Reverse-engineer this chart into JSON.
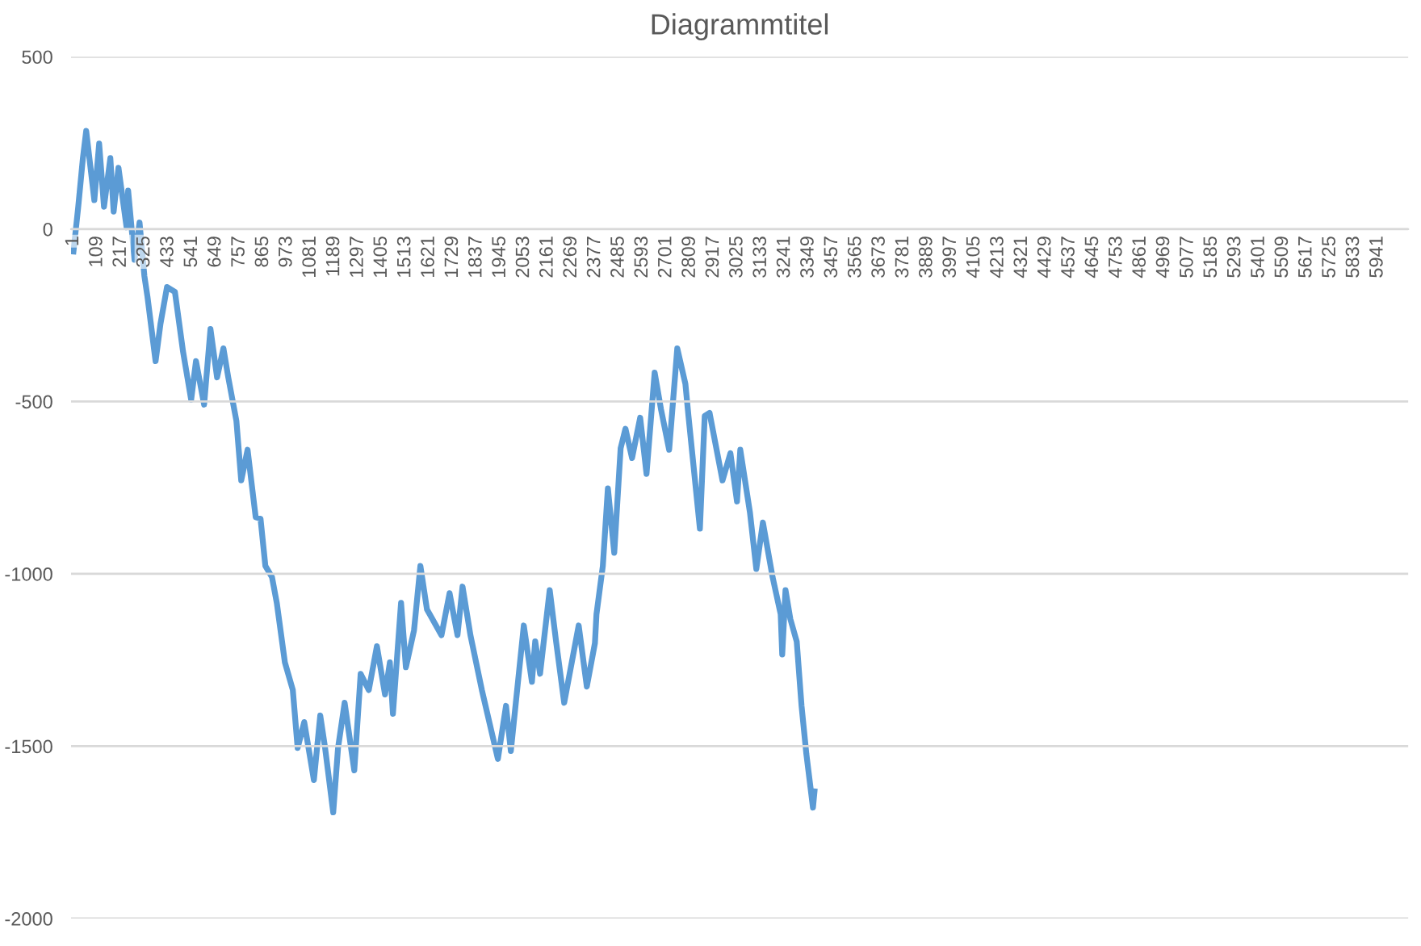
{
  "chart_data": {
    "type": "line",
    "title": "Diagrammtitel",
    "series": [
      {
        "color": "#5b9bd5",
        "x": [
          1,
          22,
          44,
          59,
          96,
          118,
          140,
          169,
          184,
          206,
          243,
          250,
          279,
          302,
          324,
          338,
          375,
          397,
          427,
          463,
          500,
          537,
          559,
          596,
          625,
          655,
          684,
          706,
          743,
          765,
          794,
          816,
          831,
          853,
          875,
          905,
          927,
          964,
          1000,
          1022,
          1052,
          1096,
          1125,
          1147,
          1184,
          1206,
          1236,
          1280,
          1309,
          1346,
          1383,
          1420,
          1442,
          1456,
          1493,
          1515,
          1552,
          1581,
          1611,
          1677,
          1714,
          1750,
          1773,
          1809,
          1861,
          1934,
          1971,
          1993,
          2052,
          2089,
          2104,
          2126,
          2170,
          2199,
          2236,
          2302,
          2339,
          2376,
          2383,
          2412,
          2435,
          2464,
          2493,
          2515,
          2545,
          2582,
          2611,
          2648,
          2677,
          2714,
          2751,
          2788,
          2802,
          2854,
          2876,
          2898,
          2957,
          2993,
          3023,
          3038,
          3082,
          3111,
          3141,
          3185,
          3222,
          3229,
          3244,
          3266,
          3295,
          3317,
          3339,
          3369,
          3376
        ],
        "values": [
          -65,
          60,
          206,
          285,
          84,
          248,
          65,
          206,
          51,
          178,
          5,
          112,
          -89,
          19,
          -136,
          -196,
          -383,
          -276,
          -168,
          -182,
          -355,
          -495,
          -383,
          -509,
          -290,
          -430,
          -346,
          -430,
          -556,
          -729,
          -640,
          -757,
          -836,
          -840,
          -977,
          -1009,
          -1084,
          -1257,
          -1337,
          -1505,
          -1430,
          -1598,
          -1411,
          -1505,
          -1692,
          -1505,
          -1374,
          -1570,
          -1290,
          -1337,
          -1210,
          -1350,
          -1257,
          -1406,
          -1084,
          -1271,
          -1164,
          -977,
          -1103,
          -1178,
          -1056,
          -1178,
          -1037,
          -1178,
          -1337,
          -1537,
          -1383,
          -1514,
          -1150,
          -1313,
          -1196,
          -1290,
          -1047,
          -1196,
          -1374,
          -1150,
          -1327,
          -1201,
          -1117,
          -977,
          -752,
          -939,
          -636,
          -579,
          -664,
          -547,
          -710,
          -416,
          -523,
          -640,
          -346,
          -449,
          -542,
          -869,
          -542,
          -533,
          -729,
          -650,
          -790,
          -640,
          -822,
          -986,
          -851,
          -1009,
          -1117,
          -1234,
          -1047,
          -1131,
          -1196,
          -1383,
          -1523,
          -1678,
          -1631
        ]
      }
    ],
    "xlim": [
      -10,
      6080
    ],
    "xticks": [
      1,
      109,
      217,
      325,
      433,
      541,
      649,
      757,
      865,
      973,
      1081,
      1189,
      1297,
      1405,
      1513,
      1621,
      1729,
      1837,
      1945,
      2053,
      2161,
      2269,
      2377,
      2485,
      2593,
      2701,
      2809,
      2917,
      3025,
      3133,
      3241,
      3349,
      3457,
      3565,
      3673,
      3781,
      3889,
      3997,
      4105,
      4213,
      4321,
      4429,
      4537,
      4645,
      4753,
      4861,
      4969,
      5077,
      5185,
      5293,
      5401,
      5509,
      5617,
      5725,
      5833,
      5941
    ],
    "ylim": [
      -2000,
      500
    ],
    "yticks": [
      -2000,
      -1500,
      -1000,
      -500,
      0,
      500
    ],
    "grid": "y",
    "legend": false,
    "marker": "none",
    "line_style": "solid"
  }
}
